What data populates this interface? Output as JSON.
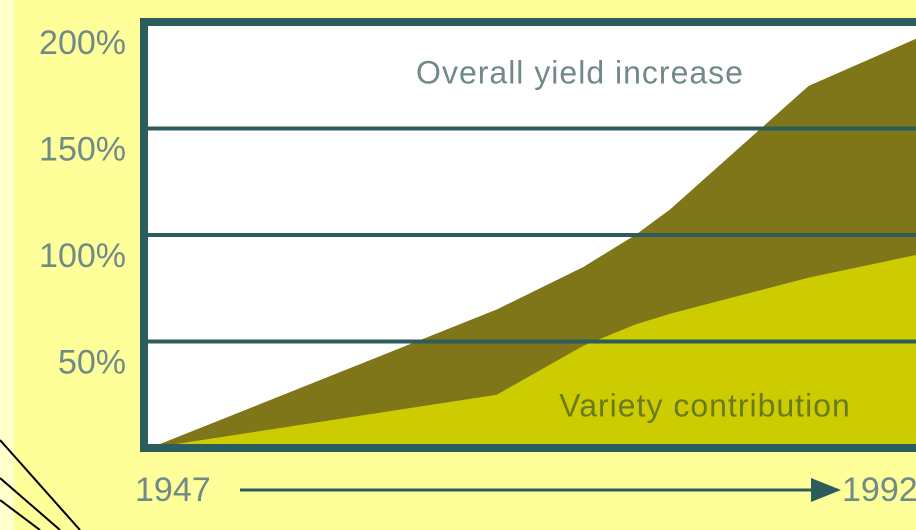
{
  "chart_data": {
    "type": "area",
    "x": [
      1947,
      1967,
      1972,
      1975,
      1977,
      1985,
      1992
    ],
    "series": [
      {
        "name": "Overall yield increase",
        "color": "#7f7519",
        "values": [
          0,
          65,
          85,
          100,
          112,
          170,
          195
        ]
      },
      {
        "name": "Variety contribution",
        "color": "#cccc00",
        "values": [
          0,
          25,
          48,
          58,
          63,
          80,
          92
        ]
      }
    ],
    "xlim": [
      1947,
      1992
    ],
    "xticks": [
      1947,
      1992
    ],
    "ylim": [
      0,
      200
    ],
    "yticks": [
      {
        "value": 50,
        "label": "50%"
      },
      {
        "value": 100,
        "label": "100%"
      },
      {
        "value": 150,
        "label": "150%"
      },
      {
        "value": 200,
        "label": "200%"
      }
    ],
    "grid": true
  }
}
